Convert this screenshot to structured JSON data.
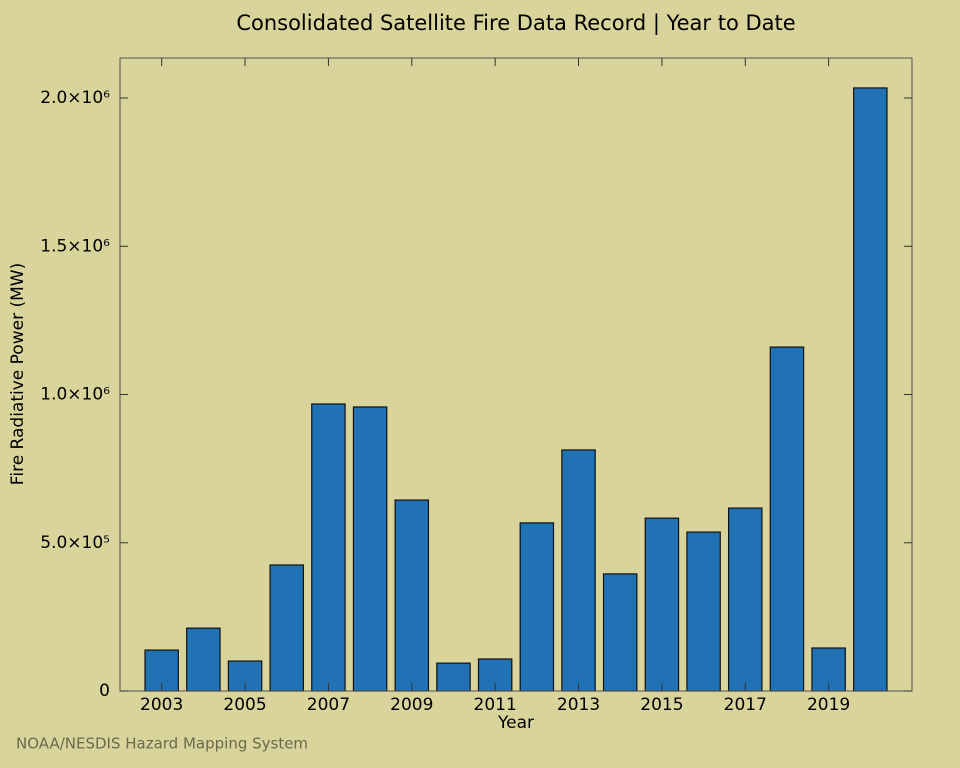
{
  "chart_data": {
    "type": "bar",
    "title": "Consolidated Satellite Fire Data Record | Year to Date",
    "x_label": "Year",
    "y_label": "Fire Radiative Power (MW)",
    "footer": "NOAA/NESDIS Hazard Mapping System",
    "x": [
      2003,
      2004,
      2005,
      2006,
      2007,
      2008,
      2009,
      2010,
      2011,
      2012,
      2013,
      2014,
      2015,
      2016,
      2017,
      2018,
      2019,
      2020
    ],
    "values": [
      138000,
      212000,
      101000,
      425000,
      968000,
      958000,
      644000,
      94000,
      108000,
      567000,
      813000,
      395000,
      583000,
      536000,
      617000,
      1160000,
      145000,
      2034000
    ],
    "color": "#2171b5",
    "xlim": [
      2002,
      2021
    ],
    "xticks": [
      2003,
      2005,
      2007,
      2009,
      2011,
      2013,
      2015,
      2017,
      2019
    ],
    "ylim": [
      0,
      2135000
    ],
    "yticks": [
      0,
      {
        "value": 500000,
        "label": "5.0×10⁵"
      },
      {
        "value": 1000000,
        "label": "1.0×10⁶"
      },
      {
        "value": 1500000,
        "label": "1.5×10⁶"
      },
      {
        "value": 2000000,
        "label": "2.0×10⁶"
      }
    ]
  }
}
